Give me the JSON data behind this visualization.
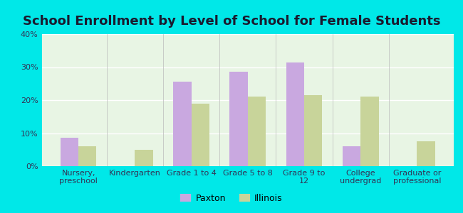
{
  "title": "School Enrollment by Level of School for Female Students",
  "categories": [
    "Nursery,\npreschool",
    "Kindergarten",
    "Grade 1 to 4",
    "Grade 5 to 8",
    "Grade 9 to\n12",
    "College\nundergrad",
    "Graduate or\nprofessional"
  ],
  "paxton_values": [
    8.5,
    0,
    25.5,
    28.5,
    31.5,
    6.0,
    0
  ],
  "illinois_values": [
    6.0,
    5.0,
    19.0,
    21.0,
    21.5,
    21.0,
    7.5
  ],
  "paxton_color": "#c9a8e0",
  "illinois_color": "#c8d49a",
  "background_color": "#00e8e8",
  "plot_bg": "#e8f5e4",
  "ylim": [
    0,
    40
  ],
  "yticks": [
    0,
    10,
    20,
    30,
    40
  ],
  "ytick_labels": [
    "0%",
    "10%",
    "20%",
    "30%",
    "40%"
  ],
  "bar_width": 0.32,
  "legend_labels": [
    "Paxton",
    "Illinois"
  ],
  "title_fontsize": 13,
  "tick_fontsize": 8,
  "title_color": "#1a1a2e"
}
